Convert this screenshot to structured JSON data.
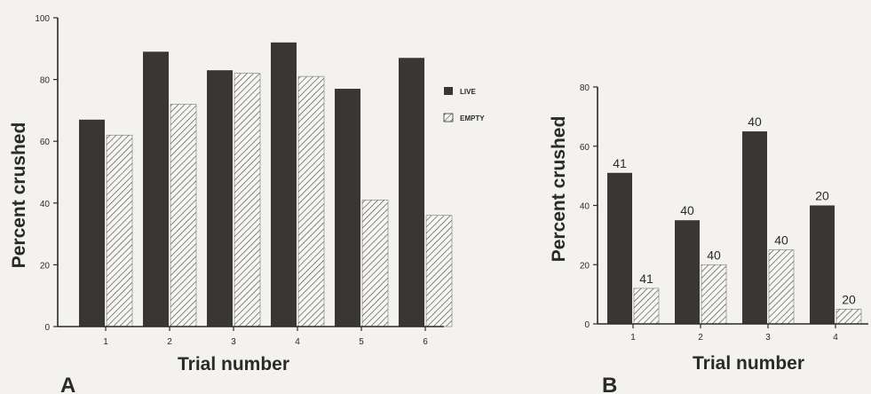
{
  "colors": {
    "live": "#3a3636",
    "hatch": "#4a4a4a",
    "hatch_bg": "#f6f6f2",
    "axis": "#2a2a2a"
  },
  "chart_data": [
    {
      "type": "bar",
      "panel_label": "A",
      "categories": [
        "1",
        "2",
        "3",
        "4",
        "5",
        "6"
      ],
      "series": [
        {
          "name": "LIVE",
          "values": [
            67,
            89,
            83,
            92,
            77,
            87
          ]
        },
        {
          "name": "EMPTY",
          "values": [
            62,
            72,
            82,
            81,
            41,
            36
          ]
        }
      ],
      "xlabel": "Trial number",
      "ylabel": "Percent crushed",
      "ylim": [
        0,
        100
      ],
      "yticks": [
        "0",
        "20",
        "40",
        "60",
        "80",
        "100"
      ],
      "grid": false,
      "legend": "right"
    },
    {
      "type": "bar",
      "panel_label": "B",
      "categories": [
        "1",
        "2",
        "3",
        "4"
      ],
      "series": [
        {
          "values": [
            51,
            35,
            65,
            40
          ],
          "labels": [
            "41",
            "40",
            "40",
            "20"
          ]
        },
        {
          "values": [
            12,
            20,
            25,
            5
          ],
          "labels": [
            "41",
            "40",
            "40",
            "20"
          ]
        }
      ],
      "xlabel": "Trial number",
      "ylabel": "Percent crushed",
      "ylim": [
        0,
        80
      ],
      "yticks": [
        "0",
        "20",
        "40",
        "60",
        "80"
      ],
      "grid": false
    }
  ]
}
